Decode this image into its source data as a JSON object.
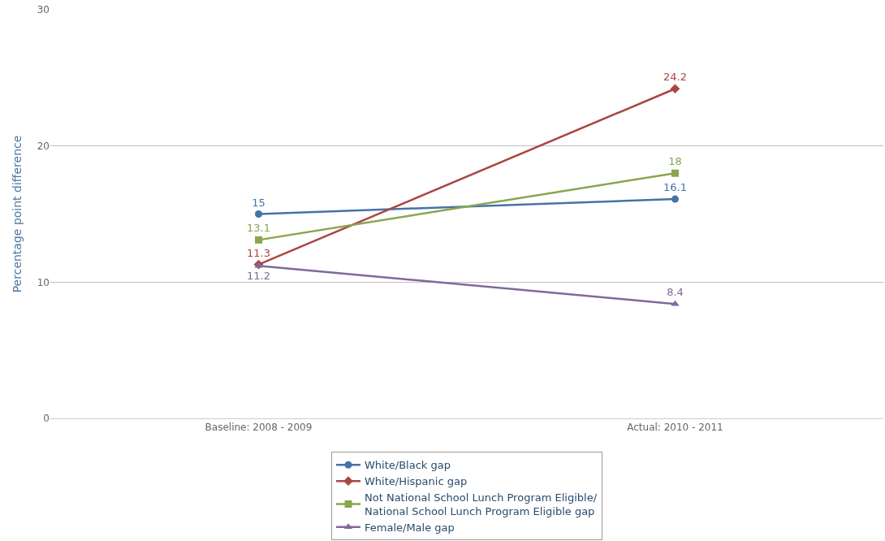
{
  "chart_data": {
    "type": "line",
    "ylabel": "Percentage point difference",
    "categories": [
      "Baseline: 2008 - 2009",
      "Actual: 2010 - 2011"
    ],
    "series": [
      {
        "name": "White/Black gap",
        "color": "#4572a7",
        "marker": "circle",
        "values": [
          15,
          16.1
        ]
      },
      {
        "name": "White/Hispanic gap",
        "color": "#aa4643",
        "marker": "diamond",
        "values": [
          11.3,
          24.2
        ]
      },
      {
        "name": "Not National School Lunch Program Eligible/National School Lunch Program Eligible gap",
        "color": "#89a54e",
        "marker": "square",
        "values": [
          13.1,
          18
        ]
      },
      {
        "name": "Female/Male gap",
        "color": "#80699b",
        "marker": "triangle",
        "values": [
          11.2,
          8.4
        ]
      }
    ],
    "ylim": [
      0,
      30
    ],
    "yticks": [
      0,
      10,
      20,
      30
    ],
    "grid": "y",
    "legend": "bottom",
    "data_labels": true,
    "line_style": "solid"
  }
}
